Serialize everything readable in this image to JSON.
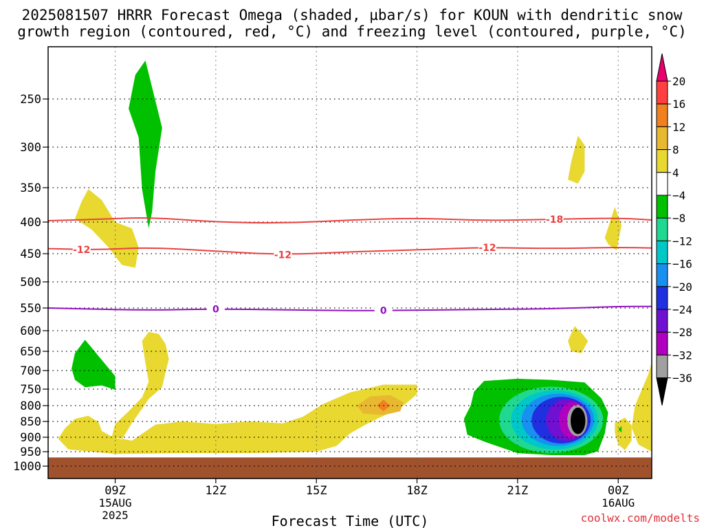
{
  "title": {
    "line1": "2025081507 HRRR Forecast Omega (shaded, µbar/s) for KOUN with dendritic snow",
    "line2": "growth region (contoured, red, °C) and freezing level (contoured, purple, °C)"
  },
  "credit": "coolwx.com/modelts",
  "chart_data": {
    "type": "heatmap",
    "title": "2025081507 HRRR Forecast Omega (shaded, µbar/s) for KOUN with dendritic snow growth region (contoured, red, °C) and freezing level (contoured, purple, °C)",
    "xlabel": "Forecast Time (UTC)",
    "ylabel": "",
    "x_range_hours_utc_aug15": [
      7,
      25
    ],
    "y_axis": "pressure (mb), reversed",
    "y_range": [
      1020,
      200
    ],
    "x_ticks": [
      {
        "hour": 9,
        "label": "09Z",
        "sub1": "15AUG",
        "sub2": "2025"
      },
      {
        "hour": 12,
        "label": "12Z",
        "sub1": "",
        "sub2": ""
      },
      {
        "hour": 15,
        "label": "15Z",
        "sub1": "",
        "sub2": ""
      },
      {
        "hour": 18,
        "label": "18Z",
        "sub1": "",
        "sub2": ""
      },
      {
        "hour": 21,
        "label": "21Z",
        "sub1": "",
        "sub2": ""
      },
      {
        "hour": 24,
        "label": "00Z",
        "sub1": "16AUG",
        "sub2": ""
      }
    ],
    "y_ticks": [
      250,
      300,
      350,
      400,
      450,
      500,
      550,
      600,
      650,
      700,
      750,
      800,
      850,
      900,
      950,
      1000
    ],
    "grid": true,
    "ground_level_mb": 970,
    "colorbar": {
      "labels": [
        "20",
        "16",
        "12",
        "8",
        "4",
        "−4",
        "−8",
        "−12",
        "−16",
        "−20",
        "−24",
        "−28",
        "−32",
        "−36"
      ],
      "colors": [
        "#e8006e",
        "#ff4040",
        "#f08020",
        "#e8b830",
        "#e8d830",
        "#ffffff",
        "#00c000",
        "#20d890",
        "#00c8c8",
        "#1890f0",
        "#2030e0",
        "#7010d0",
        "#b000c0",
        "#a0a0a0",
        "#000000"
      ]
    },
    "contours": [
      {
        "name": "-18",
        "color": "#e84040",
        "label_hours": [
          22.1
        ],
        "points": [
          [
            7,
            398
          ],
          [
            8.5,
            396
          ],
          [
            10,
            393
          ],
          [
            12,
            400
          ],
          [
            14,
            402
          ],
          [
            16,
            397
          ],
          [
            18,
            394
          ],
          [
            20,
            398
          ],
          [
            22,
            396
          ],
          [
            24,
            394
          ],
          [
            25,
            397
          ]
        ]
      },
      {
        "name": "-12",
        "color": "#e84040",
        "label_hours": [
          8,
          14,
          20.1
        ],
        "points": [
          [
            7,
            442
          ],
          [
            8.5,
            444
          ],
          [
            10,
            440
          ],
          [
            12,
            446
          ],
          [
            14,
            452
          ],
          [
            16,
            447
          ],
          [
            18,
            444
          ],
          [
            20,
            440
          ],
          [
            22,
            442
          ],
          [
            24,
            440
          ],
          [
            25,
            441
          ]
        ]
      },
      {
        "name": "0",
        "color": "#9010c0",
        "label_hours": [
          12,
          17
        ],
        "points": [
          [
            7,
            550
          ],
          [
            8,
            552
          ],
          [
            10,
            555
          ],
          [
            12,
            552
          ],
          [
            14,
            554
          ],
          [
            16,
            556
          ],
          [
            18,
            555
          ],
          [
            20,
            553
          ],
          [
            22,
            552
          ],
          [
            24,
            547
          ],
          [
            25,
            547
          ]
        ]
      }
    ],
    "omega_regions": [
      {
        "value_range": "4 to 8",
        "color": "#e8d830",
        "hour_mb": [
          [
            7.5,
            872
          ],
          [
            7.8,
            842
          ],
          [
            8.2,
            832
          ],
          [
            8.5,
            852
          ],
          [
            8.6,
            880
          ],
          [
            8.9,
            898
          ],
          [
            9.2,
            908
          ],
          [
            9.5,
            855
          ],
          [
            9.8,
            810
          ],
          [
            10,
            780
          ],
          [
            10.4,
            745
          ],
          [
            10.5,
            705
          ],
          [
            10.6,
            670
          ],
          [
            10.5,
            632
          ],
          [
            10.3,
            608
          ],
          [
            10,
            603
          ],
          [
            9.8,
            625
          ],
          [
            9.9,
            680
          ],
          [
            10,
            730
          ],
          [
            9.8,
            775
          ],
          [
            9.4,
            818
          ],
          [
            9,
            858
          ],
          [
            8.9,
            898
          ],
          [
            9.5,
            912
          ],
          [
            10.2,
            860
          ],
          [
            11,
            850
          ],
          [
            12,
            858
          ],
          [
            13,
            850
          ],
          [
            14,
            856
          ],
          [
            14.6,
            835
          ],
          [
            15.2,
            795
          ],
          [
            16,
            760
          ],
          [
            17,
            738
          ],
          [
            18,
            738
          ],
          [
            18,
            765
          ],
          [
            17.6,
            800
          ],
          [
            17,
            832
          ],
          [
            16.5,
            858
          ],
          [
            16,
            888
          ],
          [
            15.6,
            930
          ],
          [
            15,
            950
          ],
          [
            13,
            955
          ],
          [
            11,
            955
          ],
          [
            9,
            958
          ],
          [
            7.6,
            942
          ],
          [
            7.3,
            905
          ]
        ]
      },
      {
        "value_range": "4 to 8",
        "color": "#e8d830",
        "hour_mb": [
          [
            8,
            370
          ],
          [
            8.2,
            352
          ],
          [
            8.6,
            368
          ],
          [
            9,
            400
          ],
          [
            9.5,
            410
          ],
          [
            9.7,
            440
          ],
          [
            9.6,
            475
          ],
          [
            9.2,
            470
          ],
          [
            8.8,
            440
          ],
          [
            8.3,
            412
          ],
          [
            7.8,
            395
          ]
        ]
      },
      {
        "value_range": "4 to 8",
        "color": "#e8d830",
        "hour_mb": [
          [
            22.6,
            318
          ],
          [
            22.8,
            288
          ],
          [
            23,
            298
          ],
          [
            23,
            330
          ],
          [
            22.8,
            345
          ],
          [
            22.5,
            340
          ]
        ]
      },
      {
        "value_range": "4 to 8",
        "color": "#e8d830",
        "hour_mb": [
          [
            23.6,
            425
          ],
          [
            23.9,
            378
          ],
          [
            24.1,
            405
          ],
          [
            23.95,
            445
          ],
          [
            23.7,
            435
          ]
        ]
      },
      {
        "value_range": "4 to 8",
        "color": "#e8d830",
        "hour_mb": [
          [
            22.5,
            625
          ],
          [
            22.7,
            590
          ],
          [
            22.9,
            605
          ],
          [
            23.1,
            625
          ],
          [
            22.9,
            655
          ],
          [
            22.6,
            650
          ]
        ]
      },
      {
        "value_range": "4 to 8",
        "color": "#e8d830",
        "hour_mb": [
          [
            24.9,
            710
          ],
          [
            25,
            678
          ],
          [
            25,
            950
          ],
          [
            24.6,
            925
          ],
          [
            24.4,
            870
          ],
          [
            24.5,
            800
          ]
        ]
      },
      {
        "value_range": "4 to 8",
        "color": "#e8d830",
        "hour_mb": [
          [
            23.9,
            885
          ],
          [
            23.9,
            855
          ],
          [
            24.2,
            838
          ],
          [
            24.4,
            862
          ],
          [
            24.4,
            912
          ],
          [
            24.2,
            945
          ],
          [
            24,
            925
          ]
        ]
      },
      {
        "value_range": "8 to 12",
        "color": "#e8b830",
        "hour_mb": [
          [
            16.2,
            800
          ],
          [
            16.6,
            772
          ],
          [
            17.2,
            768
          ],
          [
            17.6,
            790
          ],
          [
            17.5,
            818
          ],
          [
            17,
            830
          ],
          [
            16.4,
            825
          ]
        ]
      },
      {
        "value_range": "12 to 16",
        "color": "#f08020",
        "hour_mb": [
          [
            16.8,
            800
          ],
          [
            17,
            782
          ],
          [
            17.2,
            800
          ],
          [
            17,
            818
          ]
        ]
      },
      {
        "value_range": "-4 to -8",
        "color": "#00c000",
        "hour_mb": [
          [
            9.4,
            260
          ],
          [
            9.6,
            225
          ],
          [
            9.9,
            210
          ],
          [
            10.2,
            252
          ],
          [
            10.4,
            280
          ],
          [
            10.2,
            330
          ],
          [
            10.1,
            385
          ],
          [
            10,
            410
          ],
          [
            9.8,
            352
          ],
          [
            9.7,
            290
          ]
        ]
      },
      {
        "value_range": "-4 to -8",
        "color": "#00c000",
        "hour_mb": [
          [
            7.7,
            695
          ],
          [
            7.8,
            655
          ],
          [
            8.1,
            622
          ],
          [
            8.5,
            662
          ],
          [
            9,
            715
          ],
          [
            9,
            752
          ],
          [
            8.6,
            740
          ],
          [
            8.1,
            745
          ],
          [
            7.8,
            725
          ]
        ]
      },
      {
        "value_range": "-4 to -8",
        "color": "#00c000",
        "hour_mb": [
          [
            19.4,
            842
          ],
          [
            19.6,
            800
          ],
          [
            19.7,
            758
          ],
          [
            20,
            728
          ],
          [
            21,
            722
          ],
          [
            22,
            725
          ],
          [
            23,
            732
          ],
          [
            23.5,
            778
          ],
          [
            23.7,
            822
          ],
          [
            23.6,
            888
          ],
          [
            23.4,
            948
          ],
          [
            23,
            962
          ],
          [
            22,
            962
          ],
          [
            21,
            955
          ],
          [
            20,
            915
          ],
          [
            19.5,
            892
          ]
        ]
      },
      {
        "value_range": "-4 to -8",
        "color": "#00c000",
        "hour_mb": [
          [
            24,
            875
          ],
          [
            24.1,
            865
          ],
          [
            24.1,
            885
          ]
        ]
      }
    ],
    "omega_cores": [
      {
        "value_range": "-8 to -12",
        "color": "#20d890",
        "center": [
          22.0,
          845
        ],
        "hour_radius": 1.55,
        "mb_radius": 105
      },
      {
        "value_range": "-12 to -16",
        "color": "#00c8c8",
        "center": [
          22.1,
          845
        ],
        "hour_radius": 1.3,
        "mb_radius": 94
      },
      {
        "value_range": "-16 to -20",
        "color": "#1890f0",
        "center": [
          22.2,
          845
        ],
        "hour_radius": 1.08,
        "mb_radius": 83
      },
      {
        "value_range": "-20 to -24",
        "color": "#2030e0",
        "center": [
          22.3,
          846
        ],
        "hour_radius": 0.88,
        "mb_radius": 74
      },
      {
        "value_range": "-24 to -28",
        "color": "#7010d0",
        "center": [
          22.45,
          846
        ],
        "hour_radius": 0.6,
        "mb_radius": 66
      },
      {
        "value_range": "-28 to -32",
        "color": "#b000c0",
        "center": [
          22.65,
          846
        ],
        "hour_radius": 0.42,
        "mb_radius": 58
      },
      {
        "value_range": "-32 to -36",
        "color": "#a0a0a0",
        "center": [
          22.78,
          847
        ],
        "hour_radius": 0.3,
        "mb_radius": 50
      },
      {
        "value_range": "< -36",
        "color": "#000000",
        "center": [
          22.8,
          848
        ],
        "hour_radius": 0.22,
        "mb_radius": 42
      }
    ]
  }
}
